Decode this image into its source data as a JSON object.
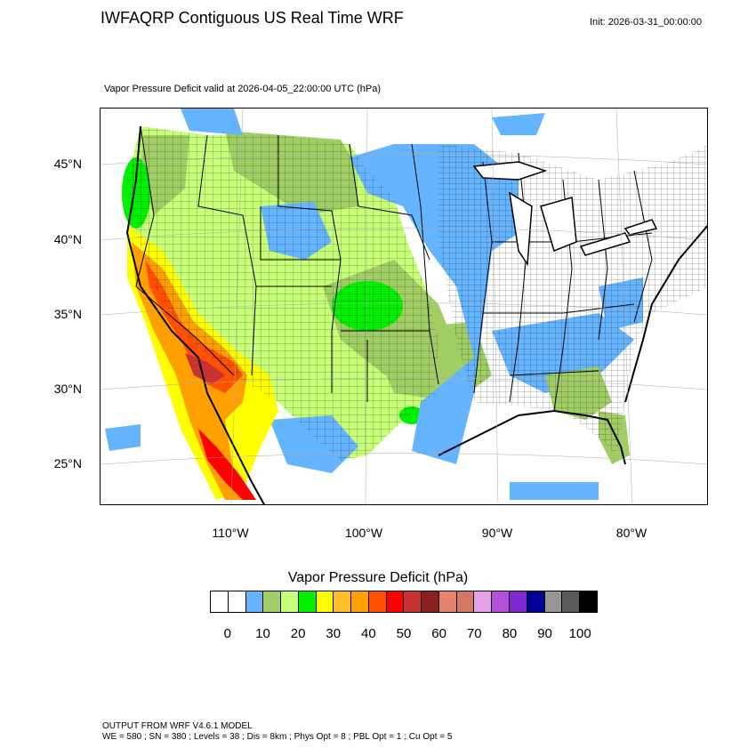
{
  "header": {
    "title": "IWFAQRP Contiguous US Real Time WRF",
    "init": "Init: 2026-03-31_00:00:00",
    "field": "Vapor Pressure Deficit valid at 2026-04-05_22:00:00 UTC   (hPa)"
  },
  "map": {
    "lat_labels": [
      "45°N",
      "40°N",
      "35°N",
      "30°N",
      "25°N"
    ],
    "lon_labels": [
      "110°W",
      "100°W",
      "90°W",
      "80°W"
    ]
  },
  "colorbar": {
    "title": "Vapor Pressure Deficit  (hPa)",
    "colors": [
      "#ffffff",
      "#ffffff",
      "#64b4ff",
      "#a0cd64",
      "#c8ff78",
      "#00f000",
      "#ffff00",
      "#ffbe28",
      "#ffa000",
      "#ff5000",
      "#ff0000",
      "#c83232",
      "#8c2020",
      "#e6826e",
      "#d27864",
      "#e6a0e6",
      "#b450dc",
      "#8228d2",
      "#000096",
      "#969696",
      "#5a5a5a",
      "#000000"
    ],
    "labels": [
      "0",
      "10",
      "20",
      "30",
      "40",
      "50",
      "60",
      "70",
      "80",
      "90",
      "100"
    ]
  },
  "footer": {
    "line1": "OUTPUT FROM WRF V4.6.1 MODEL",
    "line2": "WE = 580 ; SN = 380 ; Levels = 38 ; Dis = 8km ; Phys Opt = 8 ; PBL Opt = 1 ; Cu Opt = 5"
  }
}
